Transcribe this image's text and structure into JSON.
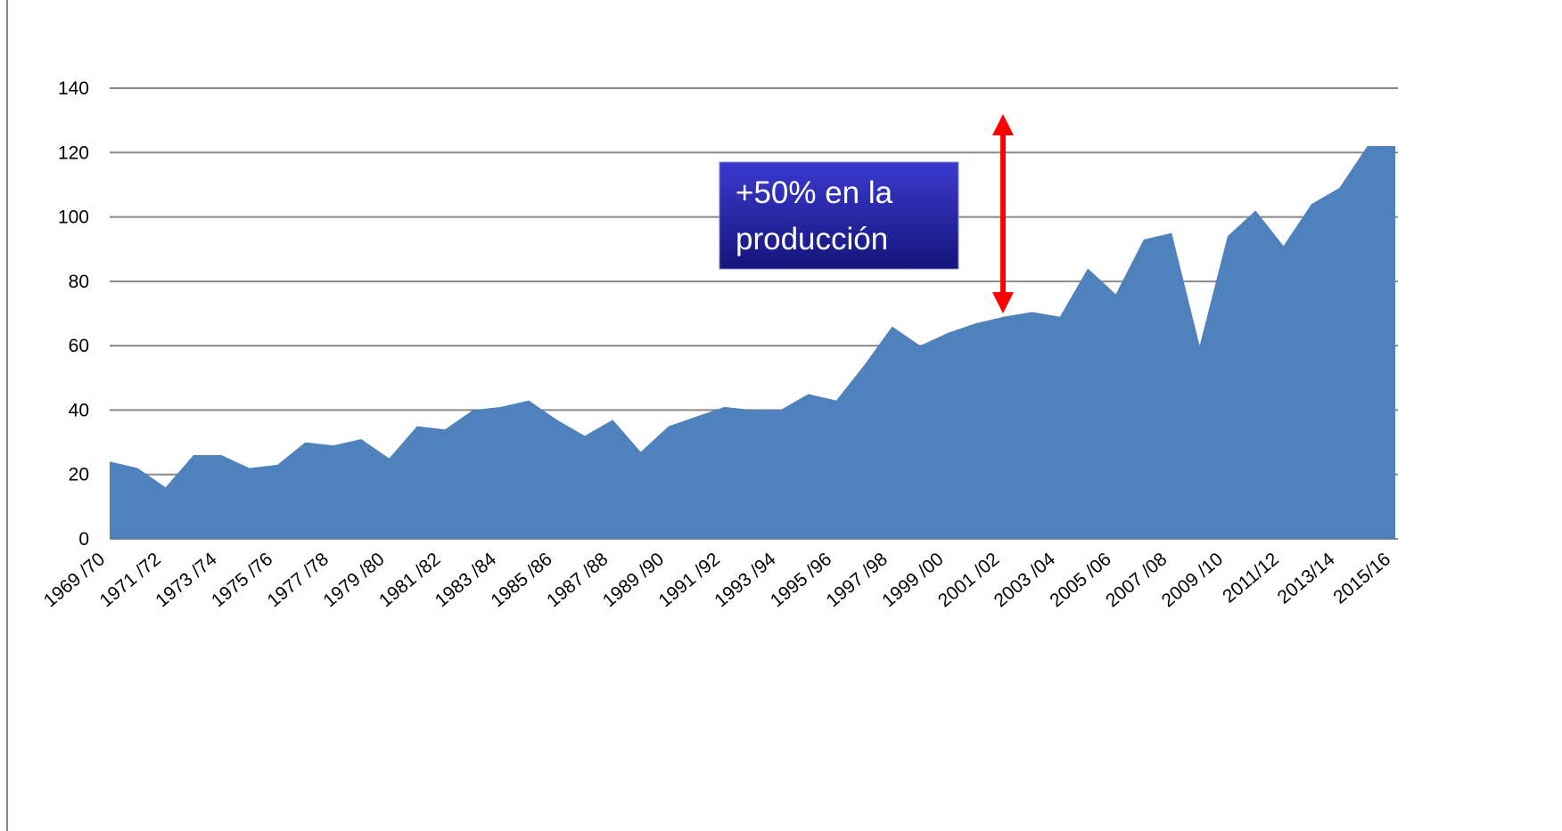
{
  "chart_data": {
    "type": "area",
    "categories": [
      "1969 /70",
      null,
      "1971 /72",
      null,
      "1973 /74",
      null,
      "1975 /76",
      null,
      "1977 /78",
      null,
      "1979 /80",
      null,
      "1981 /82",
      null,
      "1983 /84",
      null,
      "1985 /86",
      null,
      "1987 /88",
      null,
      "1989 /90",
      null,
      "1991 /92",
      null,
      "1993 /94",
      null,
      "1995 /96",
      null,
      "1997 /98",
      null,
      "1999 /00",
      null,
      "2001 /02",
      null,
      "2003 /04",
      null,
      "2005 /06",
      null,
      "2007 /08",
      null,
      "2009 /10",
      null,
      "2011/12",
      null,
      "2013/14",
      null,
      "2015/16"
    ],
    "values": [
      24,
      22,
      16,
      26,
      26,
      22,
      23,
      30,
      29,
      31,
      25,
      35,
      34,
      40,
      41,
      43,
      37,
      32,
      37,
      27,
      35,
      38,
      41,
      40,
      40,
      45,
      43,
      54,
      66,
      60,
      64,
      67,
      69,
      70.5,
      69,
      84,
      76,
      93,
      95,
      60,
      94,
      102,
      91,
      104,
      109,
      122,
      122
    ],
    "color": "#4f81bd",
    "ylim": [
      0,
      140
    ],
    "yticks": [
      0,
      20,
      40,
      60,
      80,
      100,
      120,
      140
    ],
    "grid": true,
    "annotation": [
      "+50% en la",
      "producción"
    ]
  }
}
